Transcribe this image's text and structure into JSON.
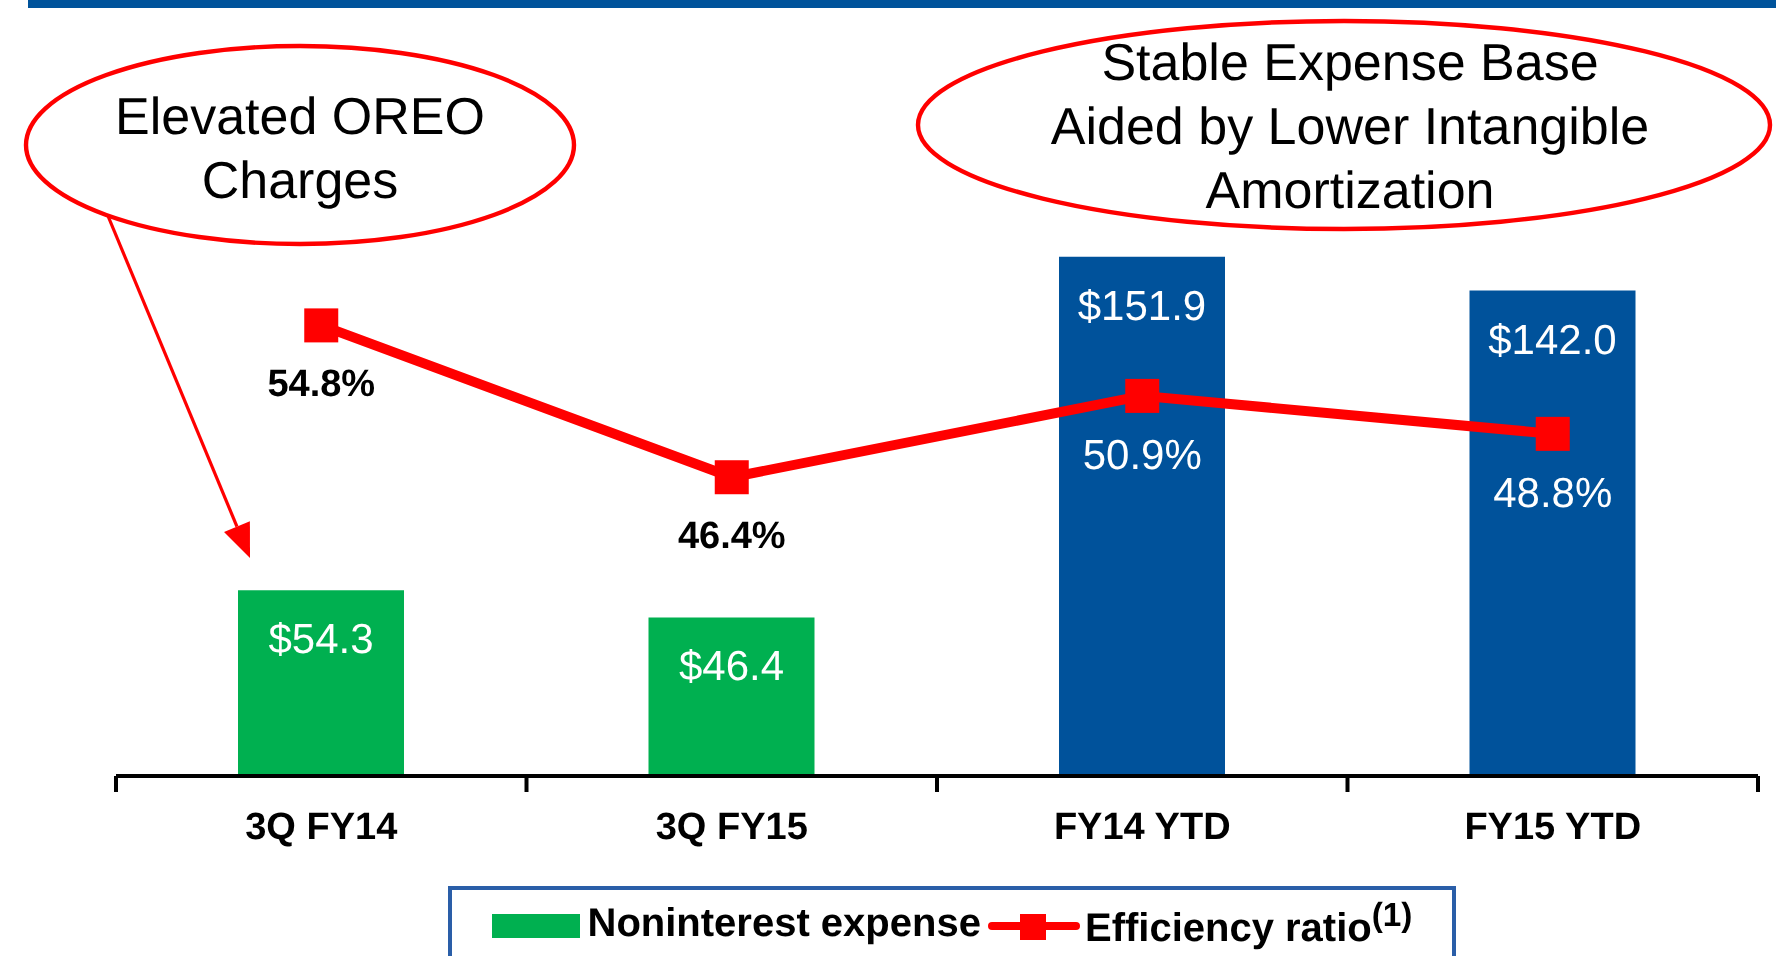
{
  "chart_data": {
    "type": "bar",
    "categories": [
      "3Q FY14",
      "3Q FY15",
      "FY14 YTD",
      "FY15 YTD"
    ],
    "series": [
      {
        "name": "Noninterest expense",
        "color": "#00b050",
        "colors": [
          "#00b050",
          "#00b050",
          "#00529b",
          "#00529b"
        ],
        "values": [
          54.3,
          46.4,
          151.9,
          142.0
        ],
        "value_labels": [
          "$54.3",
          "$46.4",
          "$151.9",
          "$142.0"
        ]
      },
      {
        "name": "Efficiency ratio$^{(1)}$",
        "type": "line",
        "axis": "y2",
        "color": "#ff0000",
        "values": [
          54.8,
          46.4,
          50.9,
          48.8
        ],
        "value_labels": [
          "54.8%",
          "46.4%",
          "50.9%",
          "48.8%"
        ]
      }
    ],
    "tick_labels": "x",
    "marker": "square",
    "legend": "bottom",
    "annotations": [
      "Elevated OREO Charges",
      "Stable Expense Base Aided by Lower Intangible Amortization"
    ]
  }
}
